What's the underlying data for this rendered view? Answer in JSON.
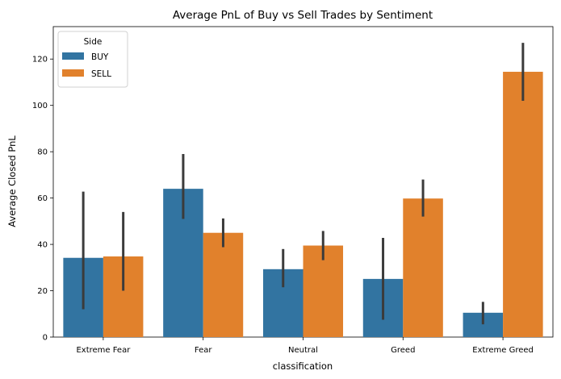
{
  "chart_data": {
    "type": "bar",
    "title": "Average PnL of Buy vs Sell Trades by Sentiment",
    "xlabel": "classification",
    "ylabel": "Average Closed PnL",
    "categories": [
      "Extreme Fear",
      "Fear",
      "Neutral",
      "Greed",
      "Extreme Greed"
    ],
    "ylim": [
      0,
      134
    ],
    "yticks": [
      0,
      20,
      40,
      60,
      80,
      100,
      120
    ],
    "grid": false,
    "legend": {
      "title": "Side",
      "position": "top-left"
    },
    "series": [
      {
        "name": "BUY",
        "color": "#3274a1",
        "values": [
          34.2,
          64.0,
          29.3,
          25.1,
          10.5
        ],
        "error_low": [
          12.0,
          51.0,
          21.5,
          7.5,
          5.5
        ],
        "error_high": [
          62.8,
          79.0,
          38.0,
          42.8,
          15.2
        ]
      },
      {
        "name": "SELL",
        "color": "#e1812c",
        "values": [
          34.8,
          45.0,
          39.5,
          59.8,
          114.5
        ],
        "error_low": [
          20.0,
          38.8,
          33.2,
          52.0,
          102.0
        ],
        "error_high": [
          54.0,
          51.2,
          45.8,
          68.0,
          127.0
        ]
      }
    ],
    "errorbar_color": "#3b3b3b"
  }
}
